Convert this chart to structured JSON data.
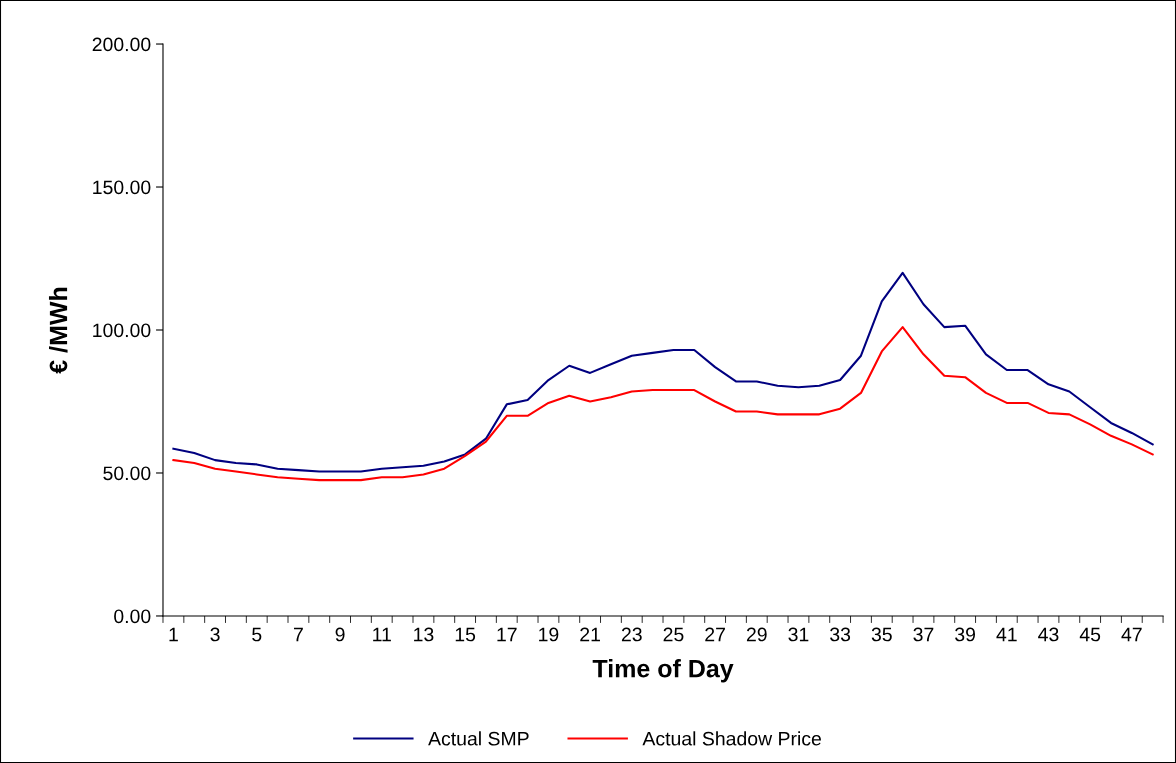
{
  "chart_data": {
    "type": "line",
    "xlabel": "Time of Day",
    "ylabel": "€ /MWh",
    "categories": [
      "1",
      null,
      "3",
      null,
      "5",
      null,
      "7",
      null,
      "9",
      null,
      "11",
      null,
      "13",
      null,
      "15",
      null,
      "17",
      null,
      "19",
      null,
      "21",
      null,
      "23",
      null,
      "25",
      null,
      "27",
      null,
      "29",
      null,
      "31",
      null,
      "33",
      null,
      "35",
      null,
      "37",
      null,
      "39",
      null,
      "41",
      null,
      "43",
      null,
      "45",
      null,
      "47",
      null
    ],
    "series": [
      {
        "name": "Actual SMP",
        "color": "#000080",
        "values": [
          58.5,
          57,
          54.5,
          53.5,
          53,
          51.5,
          51,
          50.5,
          50.5,
          50.5,
          51.5,
          52,
          52.5,
          54,
          56.5,
          62,
          74,
          75.5,
          82.5,
          87.5,
          85,
          88,
          91,
          92,
          93,
          93,
          87,
          82,
          82,
          80.5,
          80,
          80.5,
          82.5,
          91,
          110,
          120,
          109,
          101,
          101.5,
          91.5,
          86,
          86,
          81,
          78.5,
          73,
          67.5,
          64,
          60
        ]
      },
      {
        "name": "Actual Shadow Price",
        "color": "#ff0000",
        "values": [
          54.5,
          53.5,
          51.5,
          50.5,
          49.5,
          48.5,
          48,
          47.5,
          47.5,
          47.5,
          48.5,
          48.5,
          49.5,
          51.5,
          56,
          61,
          70,
          70,
          74.5,
          77,
          75,
          76.5,
          78.5,
          79,
          79,
          79,
          75,
          71.5,
          71.5,
          70.5,
          70.5,
          70.5,
          72.5,
          78,
          92.5,
          101,
          91.5,
          84,
          83.5,
          78,
          74.5,
          74.5,
          71,
          70.5,
          67,
          63,
          60,
          56.5
        ]
      }
    ],
    "ylim": [
      0,
      200
    ],
    "yticks": [
      {
        "value": 0,
        "label": "0.00"
      },
      {
        "value": 50,
        "label": "50.00"
      },
      {
        "value": 100,
        "label": "100.00"
      },
      {
        "value": 150,
        "label": "150.00"
      },
      {
        "value": 200,
        "label": "200.00"
      }
    ],
    "grid": false,
    "legend": "bottom",
    "marker": "none",
    "line_style": "solid"
  }
}
